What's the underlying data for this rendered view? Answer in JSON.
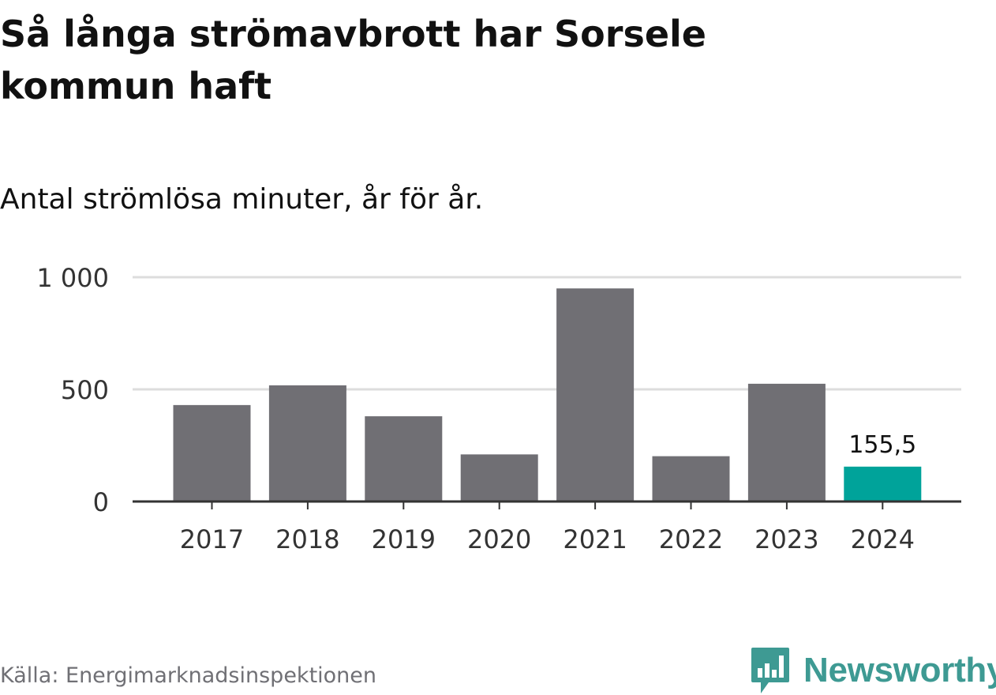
{
  "header": {
    "title": "Så långa strömavbrott har Sorsele kommun haft",
    "subtitle": "Antal strömlösa minuter, år för år."
  },
  "footer": {
    "source": "Källa: Energimarknadsinspektionen",
    "brand": "Newsworthy",
    "brand_icon": "bar-chart-speech-bubble-icon"
  },
  "colors": {
    "bar": "#706f74",
    "highlight": "#00a39a",
    "gridline": "#dddddd",
    "axis": "#333333",
    "text": "#111111",
    "muted": "#707075",
    "brand": "#3e9a93"
  },
  "chart_data": {
    "type": "bar",
    "title": "Så långa strömavbrott har Sorsele kommun haft",
    "subtitle": "Antal strömlösa minuter, år för år.",
    "categories": [
      "2017",
      "2018",
      "2019",
      "2020",
      "2021",
      "2022",
      "2023",
      "2024"
    ],
    "values": [
      430,
      518,
      380,
      210,
      950,
      202,
      525,
      155.5
    ],
    "highlight_index": 7,
    "highlight_label": "155,5",
    "ylim": [
      0,
      1000
    ],
    "yticks": [
      0,
      500,
      1000
    ],
    "ytick_labels": [
      "0",
      "500",
      "1 000"
    ],
    "grid": true,
    "legend": "none"
  }
}
